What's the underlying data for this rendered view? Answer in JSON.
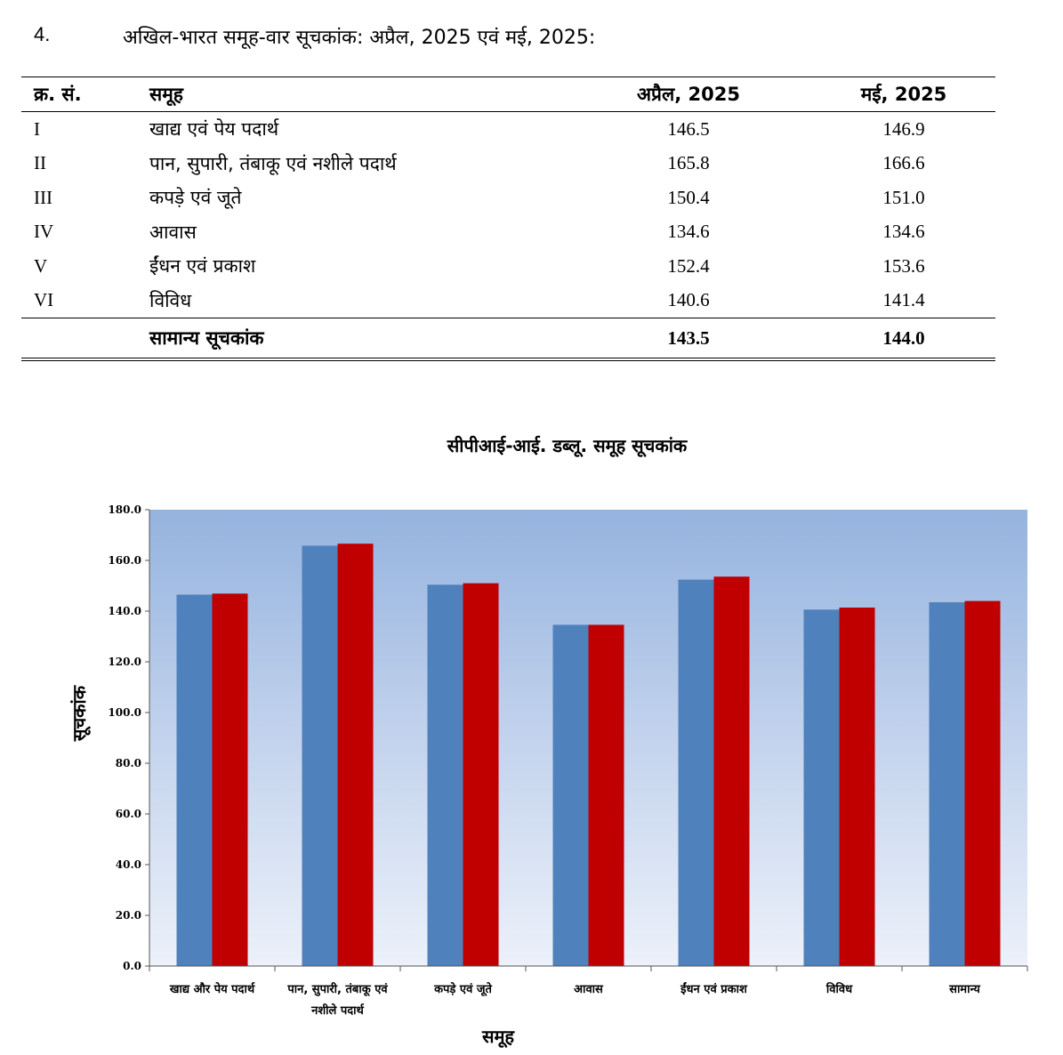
{
  "section": {
    "number": "4.",
    "title": "अखिल-भारत समूह-वार सूचकांक:  अप्रैल, 2025 एवं मई, 2025:"
  },
  "table": {
    "headers": [
      "क्र. सं.",
      "समूह",
      "अप्रैल, 2025",
      "मई, 2025"
    ],
    "rows": [
      {
        "code": "I",
        "name": "खाद्य एवं पेय पदार्थ",
        "april": "146.5",
        "may": "146.9"
      },
      {
        "code": "II",
        "name": "पान, सुपारी, तंबाकू एवं नशीले पदार्थ",
        "april": "165.8",
        "may": "166.6"
      },
      {
        "code": "III",
        "name": "कपड़े एवं जूते",
        "april": "150.4",
        "may": "151.0"
      },
      {
        "code": "IV",
        "name": "आवास",
        "april": "134.6",
        "may": "134.6"
      },
      {
        "code": "V",
        "name": "ईंधन एवं प्रकाश",
        "april": "152.4",
        "may": "153.6"
      },
      {
        "code": "VI",
        "name": "विविध",
        "april": "140.6",
        "may": "141.4"
      }
    ],
    "total": {
      "code": "",
      "name": "सामान्य सूचकांक",
      "april": "143.5",
      "may": "144.0"
    }
  },
  "chart_data": {
    "type": "bar",
    "title": "सीपीआई-आई. डब्लू. समूह सूचकांक",
    "xlabel": "समूह",
    "ylabel": "सूचकांक",
    "ylim": [
      0,
      180
    ],
    "yticks": [
      "0.0",
      "20.0",
      "40.0",
      "60.0",
      "80.0",
      "100.0",
      "120.0",
      "140.0",
      "160.0",
      "180.0"
    ],
    "categories": [
      [
        "खाद्य और पेय पदार्थ"
      ],
      [
        "पान, सुपारी, तंबाकू एवं",
        "नशीले पदार्थ"
      ],
      [
        "कपड़े एवं जूते"
      ],
      [
        "आवास"
      ],
      [
        "ईंधन एवं प्रकाश"
      ],
      [
        "विविध"
      ],
      [
        "सामान्य"
      ]
    ],
    "series": [
      {
        "values": [
          146.5,
          165.8,
          150.4,
          134.6,
          152.4,
          140.6,
          143.5
        ],
        "color": "#4F81BD"
      },
      {
        "values": [
          146.9,
          166.6,
          151.0,
          134.6,
          153.6,
          141.4,
          144.0
        ],
        "color": "#C00000"
      }
    ],
    "grid": false,
    "legend": "none",
    "plot_background": "gradient-blue"
  }
}
